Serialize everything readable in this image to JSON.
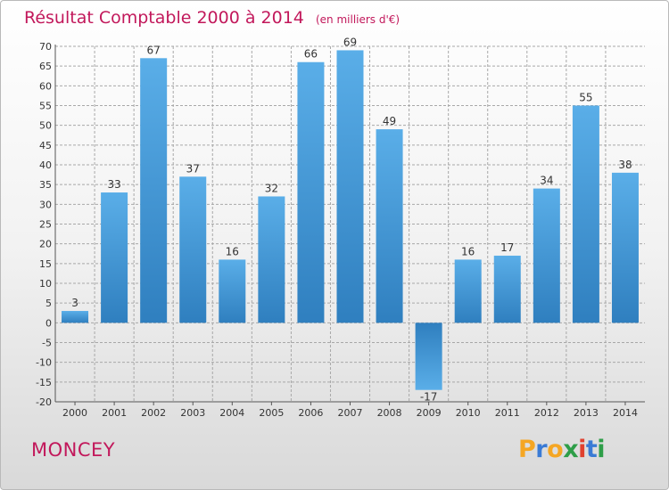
{
  "header": {
    "title": "Résultat Comptable 2000 à 2014",
    "subtitle": "(en milliers d'€)"
  },
  "footer": {
    "town": "MONCEY",
    "logo_letters": [
      "P",
      "r",
      "o",
      "x",
      "i",
      "t",
      "i"
    ]
  },
  "colors": {
    "title": "#c2185b",
    "bar_dark": "#2f7fbf",
    "bar_light": "#5aaee8",
    "grid": "#a8a8a8",
    "logo_letters": [
      "#f5a623",
      "#3a7bd5",
      "#f5a623",
      "#2e9e48",
      "#e0412f",
      "#3a7bd5",
      "#2e9e48"
    ]
  },
  "chart_data": {
    "type": "bar",
    "title": "Résultat Comptable 2000 à 2014",
    "subtitle": "(en milliers d'€)",
    "categories": [
      "2000",
      "2001",
      "2002",
      "2003",
      "2004",
      "2005",
      "2006",
      "2007",
      "2008",
      "2009",
      "2010",
      "2011",
      "2012",
      "2013",
      "2014"
    ],
    "values": [
      3,
      33,
      67,
      37,
      16,
      32,
      66,
      69,
      49,
      -17,
      16,
      17,
      34,
      55,
      38
    ],
    "ylim": [
      -20,
      70
    ],
    "yticks": [
      -20,
      -15,
      -10,
      -5,
      0,
      5,
      10,
      15,
      20,
      25,
      30,
      35,
      40,
      45,
      50,
      55,
      60,
      65,
      70
    ],
    "grid": true,
    "legend": "none"
  }
}
